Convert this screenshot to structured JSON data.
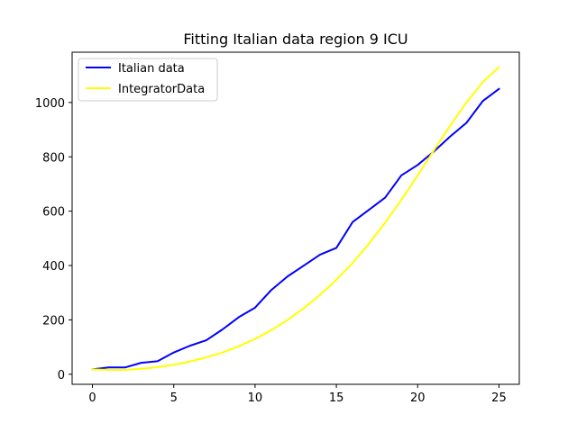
{
  "chart_data": {
    "type": "line",
    "title": "Fitting Italian data region 9 ICU",
    "xlabel": "",
    "ylabel": "",
    "xlim": [
      -1.25,
      26.25
    ],
    "ylim": [
      -37,
      1185
    ],
    "xticks": [
      0,
      5,
      10,
      15,
      20,
      25
    ],
    "yticks": [
      0,
      200,
      400,
      600,
      800,
      1000
    ],
    "grid": false,
    "legend_position": "upper-left",
    "series": [
      {
        "name": "Italian data",
        "color": "#0000ff",
        "x": [
          0,
          1,
          2,
          3,
          4,
          5,
          6,
          7,
          8,
          9,
          10,
          11,
          12,
          13,
          14,
          15,
          16,
          17,
          18,
          19,
          20,
          21,
          22,
          23,
          24,
          25
        ],
        "y": [
          18,
          25,
          25,
          42,
          48,
          80,
          105,
          125,
          165,
          210,
          245,
          310,
          360,
          400,
          440,
          465,
          560,
          605,
          650,
          732,
          770,
          820,
          875,
          925,
          1005,
          1050
        ]
      },
      {
        "name": "IntegratorData",
        "color": "#ffff00",
        "x": [
          0,
          1,
          2,
          3,
          4,
          5,
          6,
          7,
          8,
          9,
          10,
          11,
          12,
          13,
          14,
          15,
          16,
          17,
          18,
          19,
          20,
          21,
          22,
          23,
          24,
          25
        ],
        "y": [
          18,
          16,
          16,
          20,
          26,
          35,
          47,
          62,
          80,
          103,
          130,
          162,
          200,
          243,
          292,
          348,
          410,
          480,
          558,
          642,
          732,
          824,
          915,
          1000,
          1075,
          1130
        ]
      }
    ]
  }
}
